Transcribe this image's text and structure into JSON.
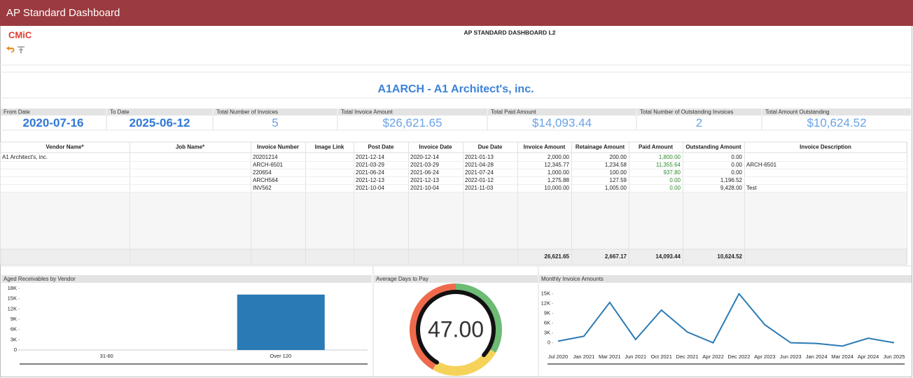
{
  "header": {
    "title": "AP Standard Dashboard",
    "logo": "CMiC",
    "report_title": "AP STANDARD DASHBOARD L2"
  },
  "vendor_title": "A1ARCH - A1 Architect's, inc.",
  "summary": [
    {
      "label": "From Date",
      "value": "2020-07-16"
    },
    {
      "label": "To Date",
      "value": "2025-06-12"
    },
    {
      "label": "Total Number of Invoices",
      "value": "5"
    },
    {
      "label": "Total Invoice Amount",
      "value": "$26,621.65"
    },
    {
      "label": "Total Paid Amount",
      "value": "$14,093.44"
    },
    {
      "label": "Total Number of Outstanding Invoices",
      "value": "2"
    },
    {
      "label": "Total Amount Outstanding",
      "value": "$10,624.52"
    }
  ],
  "table": {
    "columns": [
      "Vendor Name*",
      "Job Name*",
      "Invoice Number",
      "Image Link",
      "Post Date",
      "Invoice Date",
      "Due Date",
      "Invoice Amount",
      "Retainage Amount",
      "Paid Amount",
      "Outstanding Amount",
      "Invoice Description"
    ],
    "rows": [
      [
        "A1 Architect's, inc.",
        null,
        "20201214",
        null,
        "2021-12-14",
        "2020-12-14",
        "2021-01-13",
        "2,000.00",
        "200.00",
        "1,800.00",
        "0.00",
        null
      ],
      [
        null,
        null,
        "ARCH-6501",
        null,
        "2021-03-29",
        "2021-03-29",
        "2021-04-28",
        "12,345.77",
        "1,234.58",
        "11,355.64",
        "0.00",
        "ARCH-6501"
      ],
      [
        null,
        null,
        "220654",
        null,
        "2021-06-24",
        "2021-06-24",
        "2021-07-24",
        "1,000.00",
        "100.00",
        "937.80",
        "0.00",
        null
      ],
      [
        null,
        null,
        "ARCH564",
        null,
        "2021-12-13",
        "2021-12-13",
        "2022-01-12",
        "1,275.88",
        "127.59",
        "0.00",
        "1,196.52",
        null
      ],
      [
        null,
        null,
        "INV562",
        null,
        "2021-10-04",
        "2021-10-04",
        "2021-11-03",
        "10,000.00",
        "1,005.00",
        "0.00",
        "9,428.00",
        "Test"
      ]
    ],
    "totals": [
      null,
      null,
      null,
      null,
      null,
      null,
      null,
      "26,621.65",
      "2,667.17",
      "14,093.44",
      "10,624.52",
      null
    ]
  },
  "chart_data": [
    {
      "type": "bar",
      "title": "Aged Receivables by Vendor",
      "categories": [
        "31-60",
        "Over 120"
      ],
      "values": [
        0,
        16200
      ],
      "color": "#2a7ab5",
      "ylim": [
        0,
        18000
      ],
      "yticks": [
        0,
        {
          "value": 3000,
          "label": "3K"
        },
        {
          "value": 6000,
          "label": "6K"
        },
        {
          "value": 9000,
          "label": "9K"
        },
        {
          "value": 12000,
          "label": "12K"
        },
        {
          "value": 15000,
          "label": "15K"
        },
        {
          "value": 18000,
          "label": "18K"
        }
      ],
      "grid": false
    },
    {
      "type": "gauge",
      "title": "Average Days to Pay",
      "values": [
        47
      ],
      "value_labels": [
        "47.00"
      ],
      "color": "#111111",
      "ylim": [
        0,
        60
      ],
      "bands": [
        {
          "from": 0,
          "to": 25,
          "color": "#ef6a4c"
        },
        {
          "from": 25,
          "to": 45,
          "color": "#6dbb75"
        },
        {
          "from": 45,
          "to": 60,
          "color": "#f5d35b"
        }
      ]
    },
    {
      "type": "line",
      "title": "Monthly Invoice Amounts",
      "categories": [
        "Jul 2020",
        "Jan 2021",
        "Mar 2021",
        "Jun 2021",
        "Oct 2021",
        "Dec 2021",
        "Apr 2022",
        "Dec 2022",
        "Apr 2023",
        "Jun 2023",
        "Jan 2024",
        "Mar 2024",
        "Apr 2024",
        "Jun 2025"
      ],
      "values": [
        500,
        2000,
        12346,
        1000,
        10000,
        3300,
        0,
        15000,
        5500,
        0,
        -200,
        -1000,
        1400,
        0
      ],
      "color": "#2a7ab5",
      "ylim": [
        -2000,
        16000
      ],
      "yticks": [
        0,
        {
          "value": 3000,
          "label": "3K"
        },
        {
          "value": 6000,
          "label": "6K"
        },
        {
          "value": 9000,
          "label": "9K"
        },
        {
          "value": 12000,
          "label": "12K"
        },
        {
          "value": 15000,
          "label": "15K"
        }
      ],
      "grid": false
    }
  ]
}
